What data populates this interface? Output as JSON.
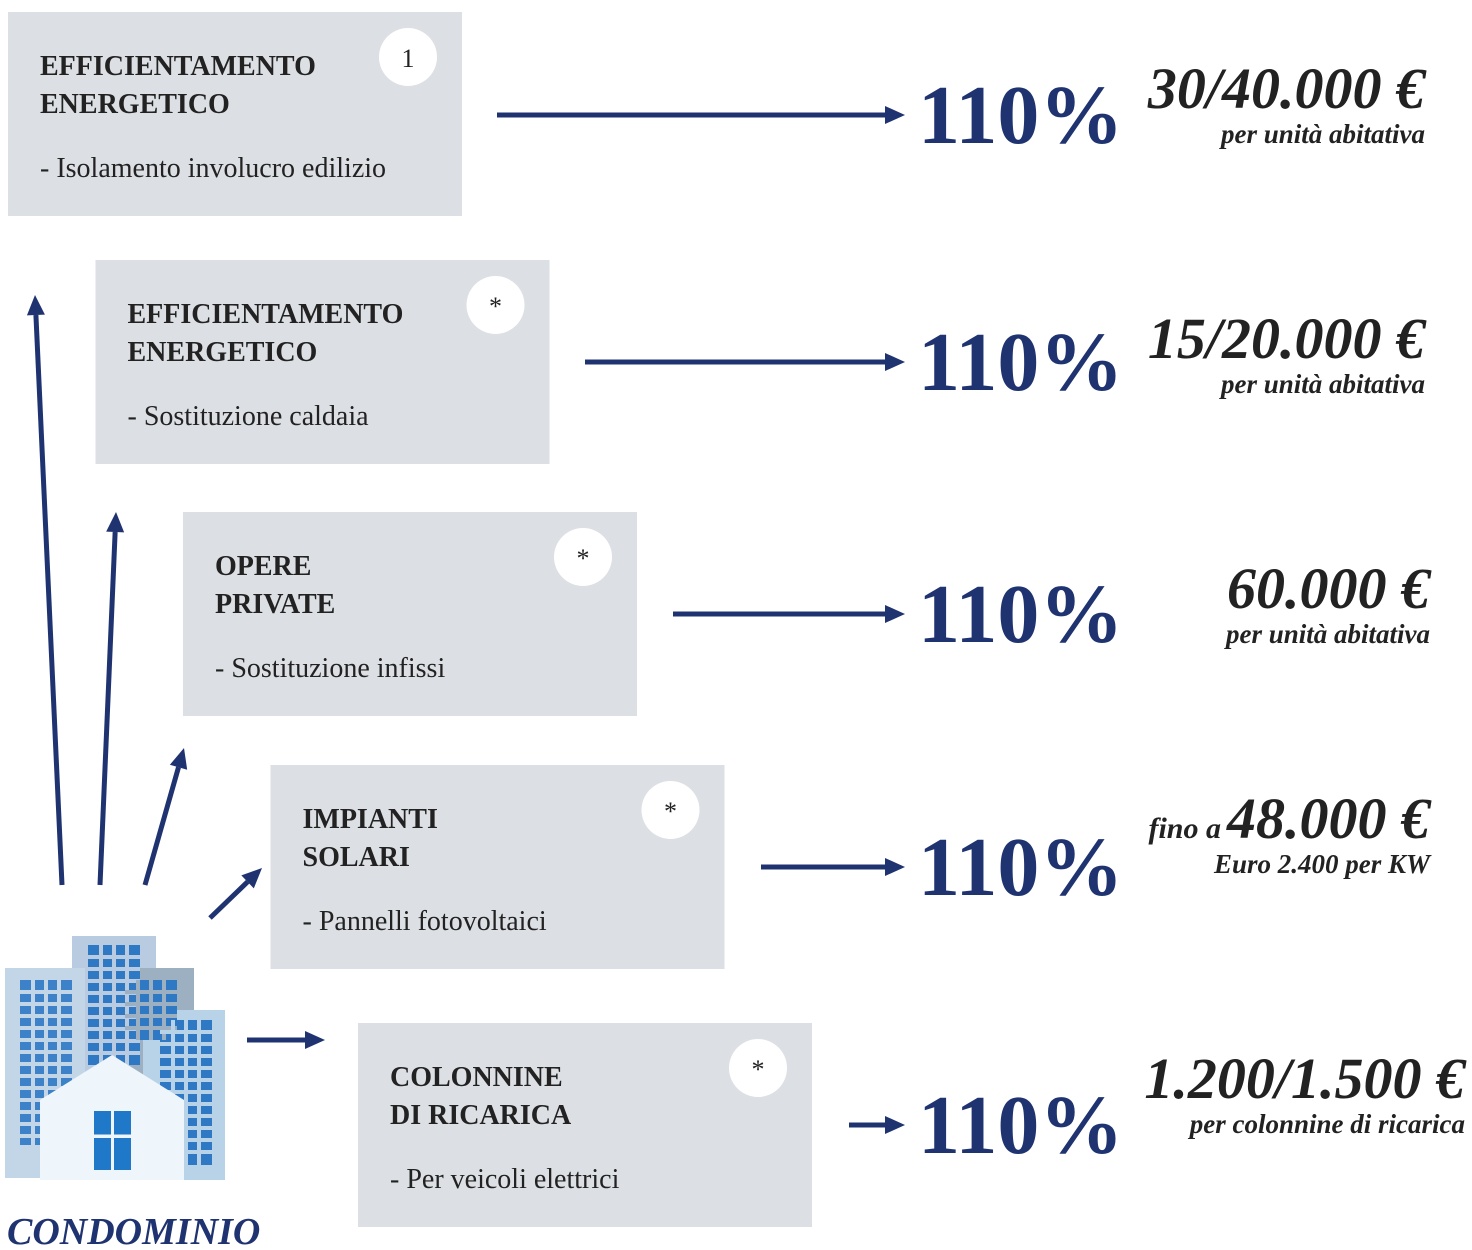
{
  "rows": [
    {
      "title": [
        "EFFICIENTAMENTO",
        "ENERGETICO"
      ],
      "badge": "1",
      "description": "- Isolamento involucro edilizio",
      "percent": "110%",
      "amount": "30/40.000 €",
      "note": "per unità abitativa"
    },
    {
      "title": [
        "EFFICIENTAMENTO",
        "ENERGETICO"
      ],
      "badge": "*",
      "description": "- Sostituzione caldaia",
      "percent": "110%",
      "amount": "15/20.000 €",
      "note": "per unità abitativa"
    },
    {
      "title": [
        "OPERE",
        "PRIVATE"
      ],
      "badge": "*",
      "description": "- Sostituzione infissi",
      "percent": "110%",
      "amount": "60.000 €",
      "note": "per unità abitativa"
    },
    {
      "title": [
        "IMPIANTI",
        "SOLARI"
      ],
      "badge": "*",
      "description": "- Pannelli fotovoltaici",
      "percent": "110%",
      "prefix": "fino a",
      "amount": "48.000 €",
      "note": "Euro 2.400 per KW"
    },
    {
      "title": [
        "COLONNINE",
        "DI RICARICA"
      ],
      "badge": "*",
      "description": "- Per veicoli elettrici",
      "percent": "110%",
      "amount": "1.200/1.500 €",
      "note": "per colonnine di ricarica"
    }
  ],
  "footer": "CONDOMINIO"
}
